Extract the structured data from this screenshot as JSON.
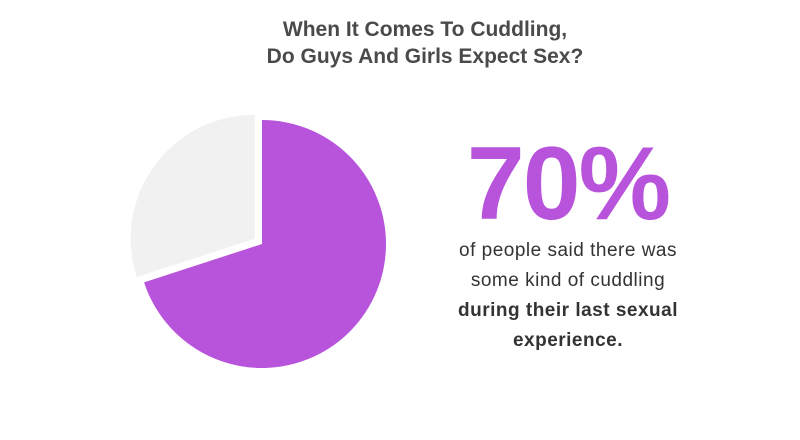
{
  "chart_data": {
    "type": "pie",
    "title_lines": [
      "When It Comes To Cuddling,",
      "Do Guys And Girls Expect Sex?"
    ],
    "slices": [
      {
        "label": "",
        "value": 70,
        "color": "#b854dc",
        "exploded": false
      },
      {
        "label": "",
        "value": 30,
        "color": "#f1f1f1",
        "exploded": true
      }
    ]
  },
  "stat": {
    "value": "70%",
    "color": "#b854dc",
    "lines": [
      "of people said there was",
      "some kind of cuddling"
    ],
    "bold_lines": [
      "during their last sexual",
      "experience."
    ]
  }
}
